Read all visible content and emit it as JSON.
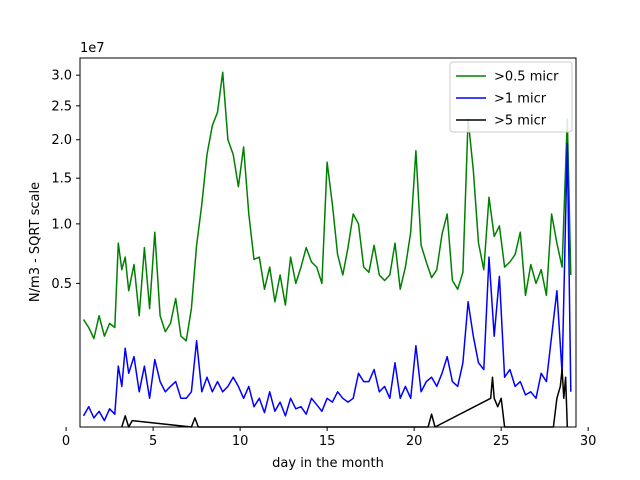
{
  "chart_data": {
    "type": "line",
    "xlabel": "day in the month",
    "ylabel": "N/m3 - SQRT scale",
    "y_scale": "sqrt",
    "y_multiplier_label": "1e7",
    "xlim": [
      0.8,
      29.3
    ],
    "ylim": [
      0.0,
      3.3
    ],
    "x_ticks": [
      0,
      5,
      10,
      15,
      20,
      25,
      30
    ],
    "x_tick_labels": [
      "0",
      "5",
      "10",
      "15",
      "20",
      "25",
      "30"
    ],
    "y_ticks": [
      0.5,
      1.0,
      1.5,
      2.0,
      2.5,
      3.0
    ],
    "y_tick_labels": [
      "0.5",
      "1.0",
      "1.5",
      "2.0",
      "2.5",
      "3.0"
    ],
    "legend_position": "top-right",
    "grid": false,
    "series": [
      {
        "name": ">0.5 micr",
        "color": "#008000",
        "x": [
          1.0,
          1.3,
          1.6,
          1.9,
          2.2,
          2.5,
          2.8,
          3.0,
          3.2,
          3.4,
          3.6,
          3.9,
          4.2,
          4.5,
          4.8,
          5.1,
          5.4,
          5.7,
          6.0,
          6.3,
          6.6,
          6.9,
          7.2,
          7.5,
          7.8,
          8.1,
          8.4,
          8.7,
          9.0,
          9.3,
          9.6,
          9.9,
          10.2,
          10.5,
          10.8,
          11.1,
          11.4,
          11.7,
          12.0,
          12.3,
          12.6,
          12.9,
          13.2,
          13.5,
          13.8,
          14.1,
          14.4,
          14.7,
          15.0,
          15.3,
          15.6,
          15.9,
          16.2,
          16.5,
          16.8,
          17.1,
          17.4,
          17.7,
          18.0,
          18.3,
          18.6,
          18.9,
          19.2,
          19.5,
          19.8,
          20.1,
          20.4,
          20.7,
          21.0,
          21.3,
          21.6,
          21.9,
          22.2,
          22.5,
          22.8,
          23.1,
          23.4,
          23.7,
          24.0,
          24.3,
          24.6,
          24.9,
          25.2,
          25.5,
          25.8,
          26.1,
          26.4,
          26.7,
          27.0,
          27.3,
          27.6,
          27.9,
          28.2,
          28.5,
          28.8,
          29.0
        ],
        "values": [
          0.28,
          0.24,
          0.19,
          0.3,
          0.2,
          0.26,
          0.24,
          0.82,
          0.6,
          0.7,
          0.45,
          0.64,
          0.3,
          0.78,
          0.34,
          0.92,
          0.3,
          0.22,
          0.26,
          0.4,
          0.2,
          0.18,
          0.34,
          0.8,
          1.2,
          1.8,
          2.2,
          2.4,
          3.05,
          2.0,
          1.8,
          1.4,
          1.9,
          1.1,
          0.68,
          0.7,
          0.46,
          0.62,
          0.38,
          0.56,
          0.36,
          0.7,
          0.5,
          0.62,
          0.78,
          0.66,
          0.62,
          0.5,
          1.7,
          1.2,
          0.72,
          0.56,
          0.78,
          1.1,
          1.0,
          0.62,
          0.58,
          0.8,
          0.56,
          0.52,
          0.56,
          0.82,
          0.46,
          0.62,
          0.92,
          1.85,
          0.8,
          0.66,
          0.54,
          0.6,
          0.9,
          1.1,
          0.52,
          0.46,
          0.58,
          2.3,
          1.6,
          0.82,
          0.6,
          1.28,
          0.88,
          0.98,
          0.62,
          0.66,
          0.72,
          0.92,
          0.42,
          0.64,
          0.5,
          0.6,
          0.42,
          1.1,
          0.82,
          0.62,
          2.3,
          0.56
        ]
      },
      {
        "name": ">1 micr",
        "color": "#0000ff",
        "x": [
          1.0,
          1.3,
          1.6,
          1.9,
          2.2,
          2.5,
          2.8,
          3.0,
          3.2,
          3.4,
          3.6,
          3.9,
          4.2,
          4.5,
          4.8,
          5.1,
          5.4,
          5.7,
          6.0,
          6.3,
          6.6,
          6.9,
          7.2,
          7.5,
          7.8,
          8.1,
          8.4,
          8.7,
          9.0,
          9.3,
          9.6,
          9.9,
          10.2,
          10.5,
          10.8,
          11.1,
          11.4,
          11.7,
          12.0,
          12.3,
          12.6,
          12.9,
          13.2,
          13.5,
          13.8,
          14.1,
          14.4,
          14.7,
          15.0,
          15.3,
          15.6,
          15.9,
          16.2,
          16.5,
          16.8,
          17.1,
          17.4,
          17.7,
          18.0,
          18.3,
          18.6,
          18.9,
          19.2,
          19.5,
          19.8,
          20.1,
          20.4,
          20.7,
          21.0,
          21.3,
          21.6,
          21.9,
          22.2,
          22.5,
          22.8,
          23.1,
          23.4,
          23.7,
          24.0,
          24.3,
          24.6,
          24.9,
          25.2,
          25.5,
          25.8,
          26.1,
          26.4,
          26.7,
          27.0,
          27.3,
          27.6,
          27.9,
          28.2,
          28.5,
          28.8,
          29.0
        ],
        "values": [
          0.003,
          0.01,
          0.002,
          0.006,
          0.001,
          0.008,
          0.004,
          0.09,
          0.04,
          0.15,
          0.07,
          0.12,
          0.03,
          0.09,
          0.02,
          0.11,
          0.05,
          0.03,
          0.04,
          0.05,
          0.02,
          0.02,
          0.03,
          0.18,
          0.03,
          0.06,
          0.03,
          0.05,
          0.03,
          0.04,
          0.06,
          0.04,
          0.02,
          0.04,
          0.01,
          0.02,
          0.005,
          0.03,
          0.006,
          0.015,
          0.003,
          0.02,
          0.008,
          0.01,
          0.004,
          0.02,
          0.012,
          0.006,
          0.02,
          0.015,
          0.03,
          0.02,
          0.015,
          0.02,
          0.07,
          0.05,
          0.05,
          0.08,
          0.03,
          0.04,
          0.02,
          0.1,
          0.02,
          0.04,
          0.02,
          0.16,
          0.03,
          0.05,
          0.06,
          0.04,
          0.07,
          0.12,
          0.05,
          0.04,
          0.1,
          0.38,
          0.2,
          0.1,
          0.08,
          0.7,
          0.2,
          0.55,
          0.06,
          0.08,
          0.04,
          0.05,
          0.025,
          0.03,
          0.02,
          0.07,
          0.05,
          0.2,
          0.45,
          0.07,
          1.95,
          0.03
        ]
      },
      {
        "name": ">5 micr",
        "color": "#000000",
        "x": [
          3.2,
          3.4,
          3.6,
          3.8,
          7.2,
          7.4,
          7.6,
          20.8,
          21.0,
          21.2,
          24.4,
          24.5,
          24.6,
          24.8,
          25.0,
          25.2,
          28.0,
          28.2,
          28.4,
          28.5,
          28.6,
          28.7,
          28.8
        ],
        "values": [
          0.0,
          0.003,
          0.0,
          0.001,
          0.0,
          0.002,
          0.0,
          0.0,
          0.004,
          0.0,
          0.02,
          0.06,
          0.02,
          0.01,
          0.02,
          0.0,
          0.0,
          0.02,
          0.04,
          0.08,
          0.02,
          0.06,
          0.0
        ]
      }
    ]
  }
}
